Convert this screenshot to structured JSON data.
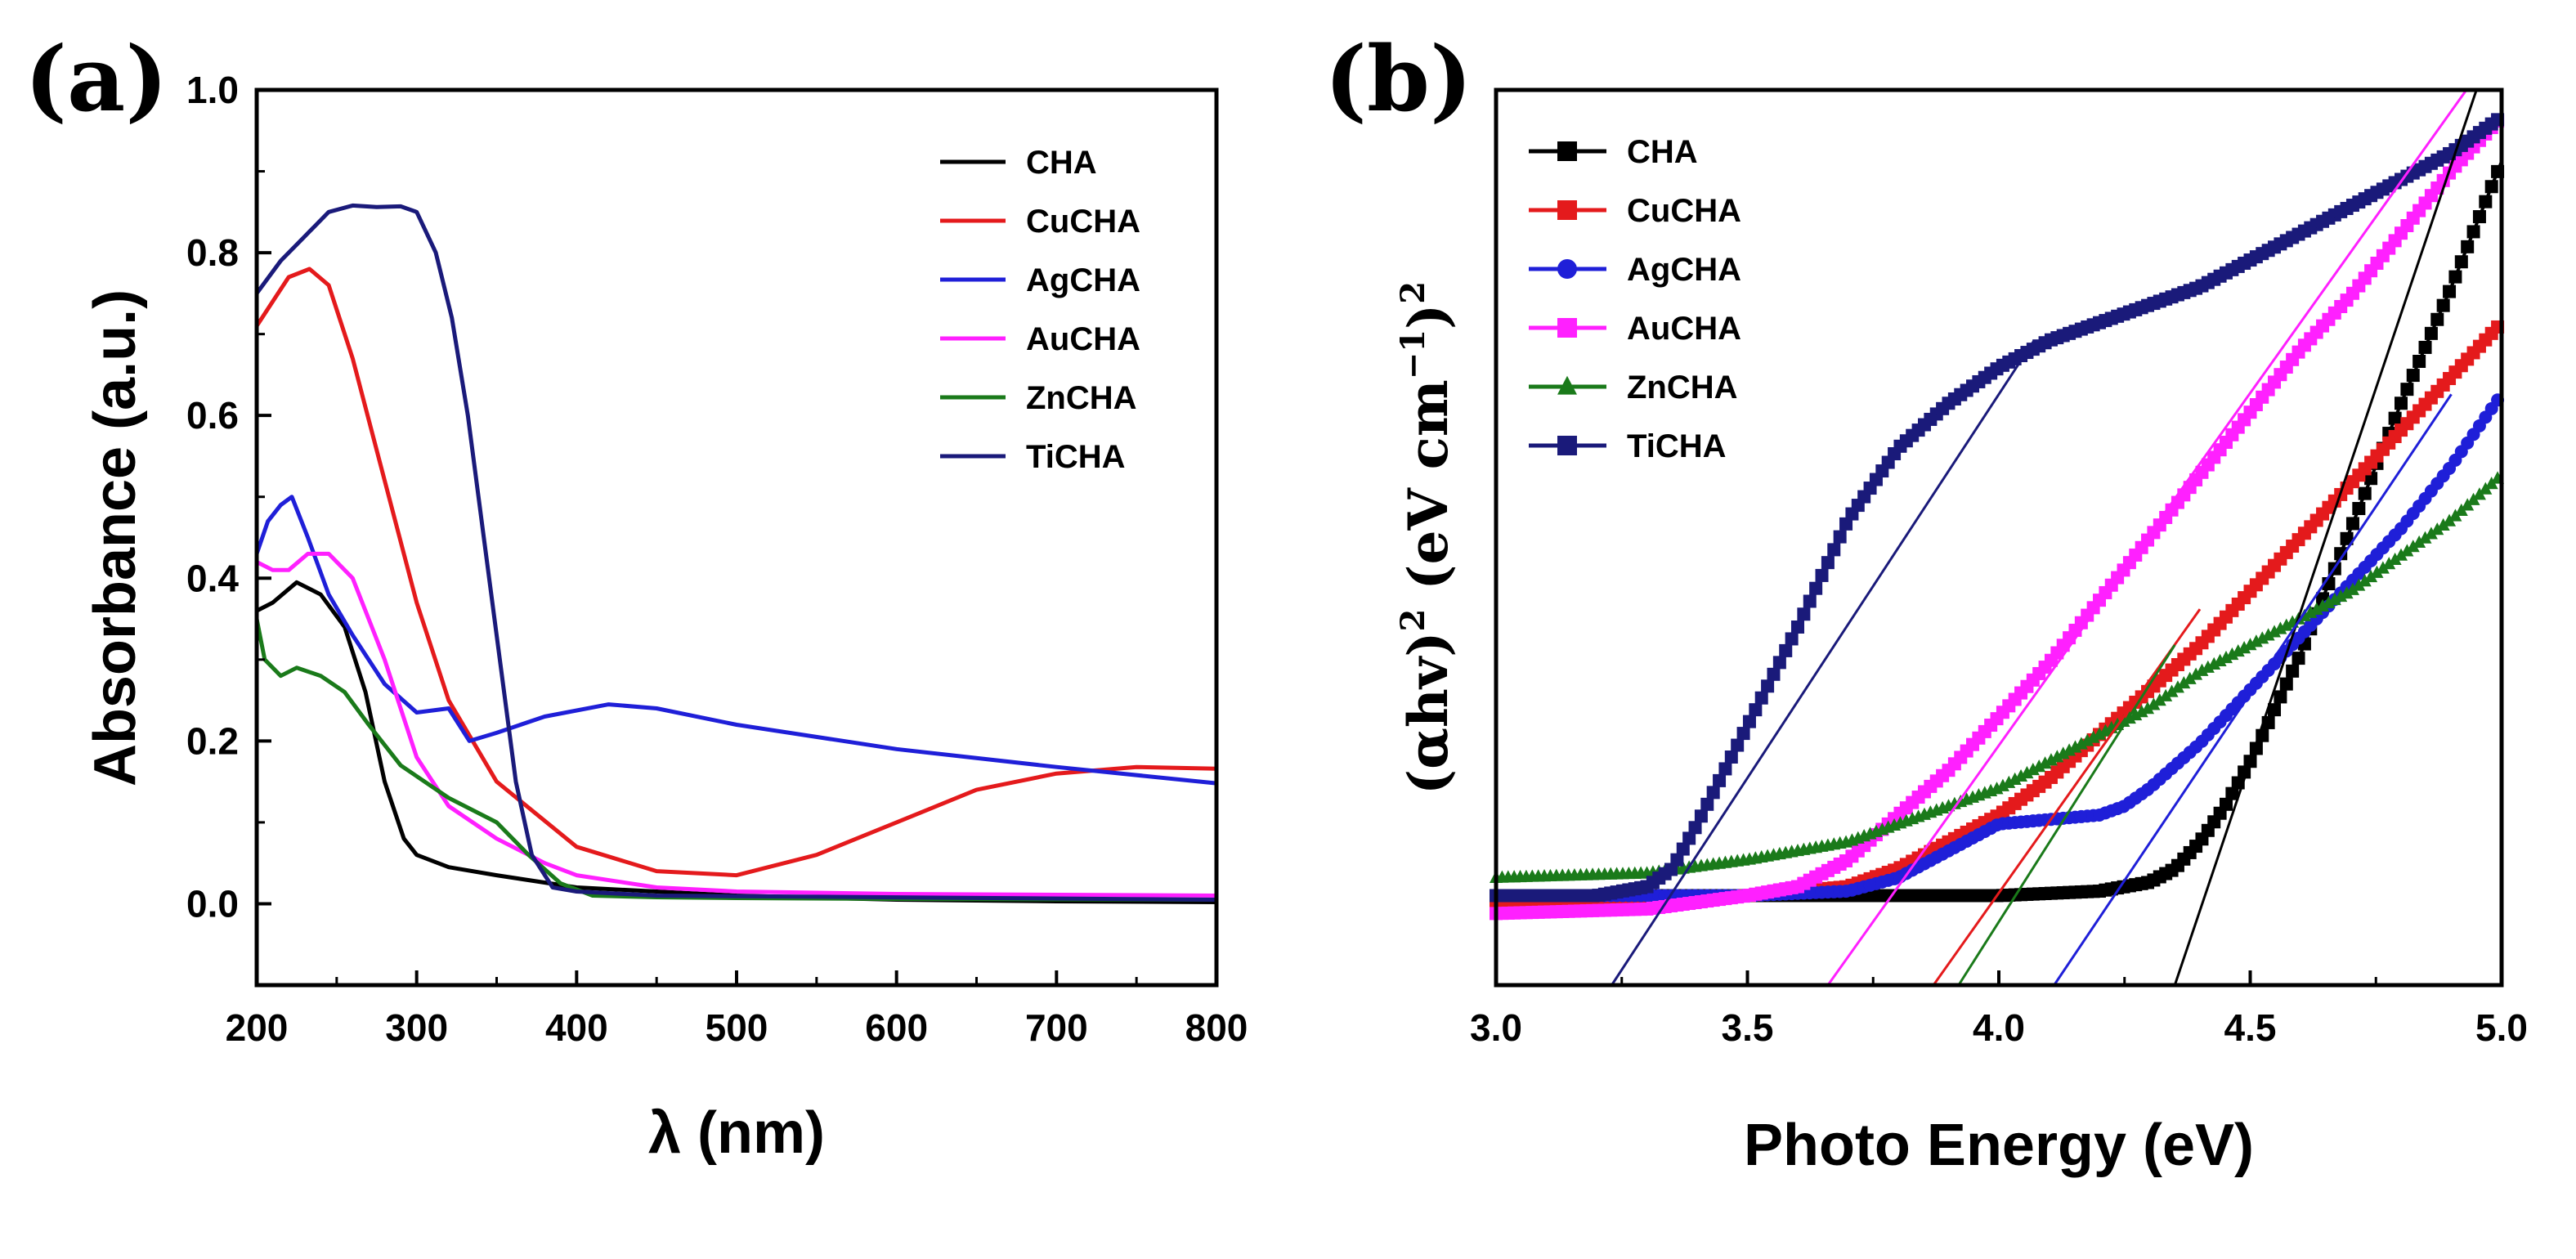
{
  "chart_data": [
    {
      "panel": "(a)",
      "type": "line",
      "xlabel": "λ (nm)",
      "ylabel": "Absorbance (a.u.)",
      "xlim": [
        200,
        800
      ],
      "ylim": [
        -0.1,
        1.0
      ],
      "xticks": [
        200,
        300,
        400,
        500,
        600,
        700,
        800
      ],
      "yticks": [
        0.0,
        0.2,
        0.4,
        0.6,
        0.8,
        1.0
      ],
      "ytick_labels": [
        "0.0",
        "0.2",
        "0.4",
        "0.6",
        "0.8",
        "1.0"
      ],
      "legend": "top-right",
      "grid": false,
      "series": [
        {
          "name": "CHA",
          "color": "#000000",
          "x": [
            200,
            210,
            225,
            240,
            255,
            268,
            280,
            292,
            300,
            320,
            350,
            400,
            500,
            600,
            700,
            800
          ],
          "y": [
            0.36,
            0.37,
            0.395,
            0.38,
            0.34,
            0.26,
            0.15,
            0.08,
            0.06,
            0.045,
            0.035,
            0.02,
            0.01,
            0.005,
            0.003,
            0.002
          ]
        },
        {
          "name": "CuCHA",
          "color": "#e41a1c",
          "x": [
            200,
            210,
            220,
            233,
            245,
            260,
            280,
            300,
            320,
            350,
            400,
            450,
            500,
            550,
            600,
            650,
            700,
            750,
            800
          ],
          "y": [
            0.71,
            0.74,
            0.77,
            0.78,
            0.76,
            0.67,
            0.52,
            0.37,
            0.25,
            0.15,
            0.07,
            0.04,
            0.035,
            0.06,
            0.1,
            0.14,
            0.16,
            0.168,
            0.166
          ]
        },
        {
          "name": "AgCHA",
          "color": "#1f1fd8",
          "x": [
            200,
            207,
            215,
            222,
            232,
            245,
            260,
            280,
            300,
            320,
            333,
            350,
            380,
            420,
            450,
            500,
            600,
            700,
            800
          ],
          "y": [
            0.43,
            0.47,
            0.49,
            0.5,
            0.45,
            0.38,
            0.33,
            0.27,
            0.235,
            0.24,
            0.2,
            0.21,
            0.23,
            0.245,
            0.24,
            0.22,
            0.19,
            0.168,
            0.148
          ]
        },
        {
          "name": "AuCHA",
          "color": "#ff20ff",
          "x": [
            200,
            210,
            220,
            232,
            245,
            260,
            280,
            300,
            320,
            350,
            380,
            400,
            450,
            500,
            600,
            800
          ],
          "y": [
            0.42,
            0.41,
            0.41,
            0.43,
            0.43,
            0.4,
            0.3,
            0.18,
            0.12,
            0.08,
            0.05,
            0.035,
            0.02,
            0.015,
            0.012,
            0.01
          ]
        },
        {
          "name": "ZnCHA",
          "color": "#1a7a1a",
          "x": [
            200,
            205,
            215,
            225,
            240,
            255,
            270,
            290,
            320,
            350,
            370,
            390,
            410,
            450,
            500,
            600,
            800
          ],
          "y": [
            0.35,
            0.3,
            0.28,
            0.29,
            0.28,
            0.26,
            0.22,
            0.17,
            0.13,
            0.1,
            0.06,
            0.025,
            0.01,
            0.008,
            0.007,
            0.006,
            0.005
          ]
        },
        {
          "name": "TiCHA",
          "color": "#1a1a7a",
          "x": [
            200,
            215,
            230,
            245,
            260,
            275,
            290,
            300,
            312,
            322,
            332,
            342,
            352,
            362,
            372,
            385,
            400,
            450,
            800
          ],
          "y": [
            0.75,
            0.79,
            0.82,
            0.85,
            0.858,
            0.856,
            0.857,
            0.85,
            0.8,
            0.72,
            0.6,
            0.45,
            0.3,
            0.15,
            0.06,
            0.02,
            0.015,
            0.01,
            0.005
          ]
        }
      ]
    },
    {
      "panel": "(b)",
      "type": "line",
      "xlabel": "Photo Energy (eV)",
      "ylabel_base": "(αhv)",
      "ylabel_base_exp": "2",
      "ylabel_unit": "(eV cm",
      "ylabel_unit_exp": "−1",
      "ylabel_unit_close": ")",
      "ylabel_unit_close_exp": "2",
      "xlim": [
        3.0,
        5.0
      ],
      "ylim": [
        0.0,
        1.0
      ],
      "xticks": [
        3.0,
        3.5,
        4.0,
        4.5,
        5.0
      ],
      "xtick_labels": [
        "3.0",
        "3.5",
        "4.0",
        "4.5",
        "5.0"
      ],
      "yticks_shown": false,
      "legend": "top-left",
      "grid": false,
      "series": [
        {
          "name": "CHA",
          "color": "#000000",
          "marker": "square",
          "x": [
            3.0,
            3.5,
            3.8,
            4.0,
            4.2,
            4.3,
            4.35,
            4.4,
            4.45,
            4.5,
            4.6,
            4.7,
            4.8,
            4.9,
            5.0
          ],
          "y": [
            0.1,
            0.1,
            0.1,
            0.1,
            0.105,
            0.115,
            0.13,
            0.16,
            0.2,
            0.25,
            0.37,
            0.51,
            0.65,
            0.78,
            0.92
          ]
        },
        {
          "name": "CuCHA",
          "color": "#e41a1c",
          "marker": "square",
          "x": [
            3.0,
            3.5,
            3.7,
            3.8,
            3.9,
            4.0,
            4.1,
            4.2,
            4.3,
            4.4,
            4.5,
            4.6,
            4.7,
            4.8,
            4.9,
            5.0
          ],
          "y": [
            0.09,
            0.1,
            0.11,
            0.13,
            0.16,
            0.19,
            0.23,
            0.28,
            0.33,
            0.38,
            0.44,
            0.5,
            0.56,
            0.62,
            0.68,
            0.74
          ]
        },
        {
          "name": "AgCHA",
          "color": "#1f1fd8",
          "marker": "circle",
          "x": [
            3.0,
            3.5,
            3.7,
            3.8,
            3.9,
            4.0,
            4.1,
            4.2,
            4.25,
            4.3,
            4.4,
            4.5,
            4.6,
            4.7,
            4.8,
            4.9,
            5.0
          ],
          "y": [
            0.1,
            0.1,
            0.105,
            0.12,
            0.15,
            0.18,
            0.185,
            0.19,
            0.2,
            0.22,
            0.27,
            0.33,
            0.39,
            0.45,
            0.51,
            0.58,
            0.66
          ]
        },
        {
          "name": "AuCHA",
          "color": "#ff20ff",
          "marker": "square",
          "x": [
            3.0,
            3.3,
            3.5,
            3.6,
            3.7,
            3.8,
            3.9,
            4.0,
            4.1,
            4.2,
            4.3,
            4.4,
            4.5,
            4.6,
            4.7,
            4.8,
            4.9,
            5.0
          ],
          "y": [
            0.08,
            0.085,
            0.1,
            0.11,
            0.14,
            0.19,
            0.24,
            0.3,
            0.36,
            0.43,
            0.5,
            0.57,
            0.64,
            0.71,
            0.77,
            0.84,
            0.91,
            0.97
          ]
        },
        {
          "name": "ZnCHA",
          "color": "#1a7a1a",
          "marker": "triangle",
          "x": [
            3.0,
            3.3,
            3.5,
            3.7,
            3.8,
            3.9,
            4.0,
            4.1,
            4.2,
            4.3,
            4.4,
            4.5,
            4.6,
            4.7,
            4.8,
            4.9,
            5.0
          ],
          "y": [
            0.12,
            0.125,
            0.14,
            0.16,
            0.18,
            0.2,
            0.22,
            0.25,
            0.28,
            0.31,
            0.35,
            0.38,
            0.41,
            0.44,
            0.48,
            0.52,
            0.57
          ]
        },
        {
          "name": "TiCHA",
          "color": "#1a1a7a",
          "marker": "square",
          "x": [
            3.0,
            3.2,
            3.3,
            3.35,
            3.4,
            3.5,
            3.6,
            3.7,
            3.8,
            3.9,
            4.0,
            4.1,
            4.2,
            4.3,
            4.4,
            4.5,
            4.6,
            4.7,
            4.8,
            4.9,
            5.0
          ],
          "y": [
            0.1,
            0.1,
            0.11,
            0.13,
            0.18,
            0.29,
            0.4,
            0.52,
            0.6,
            0.65,
            0.69,
            0.72,
            0.74,
            0.76,
            0.78,
            0.81,
            0.84,
            0.87,
            0.9,
            0.93,
            0.97
          ]
        }
      ],
      "tangent_lines": [
        {
          "color": "#000000",
          "x": [
            4.35,
            4.95
          ],
          "y": [
            0.0,
            1.0
          ]
        },
        {
          "color": "#e41a1c",
          "x": [
            3.87,
            4.4
          ],
          "y": [
            0.0,
            0.42
          ]
        },
        {
          "color": "#1f1fd8",
          "x": [
            4.11,
            4.9
          ],
          "y": [
            0.0,
            0.66
          ]
        },
        {
          "color": "#ff20ff",
          "x": [
            3.66,
            4.93
          ],
          "y": [
            0.0,
            1.0
          ]
        },
        {
          "color": "#1a7a1a",
          "x": [
            3.92,
            4.35
          ],
          "y": [
            0.0,
            0.38
          ]
        },
        {
          "color": "#1a1a7a",
          "x": [
            3.23,
            4.07
          ],
          "y": [
            0.0,
            0.72
          ]
        }
      ]
    }
  ]
}
